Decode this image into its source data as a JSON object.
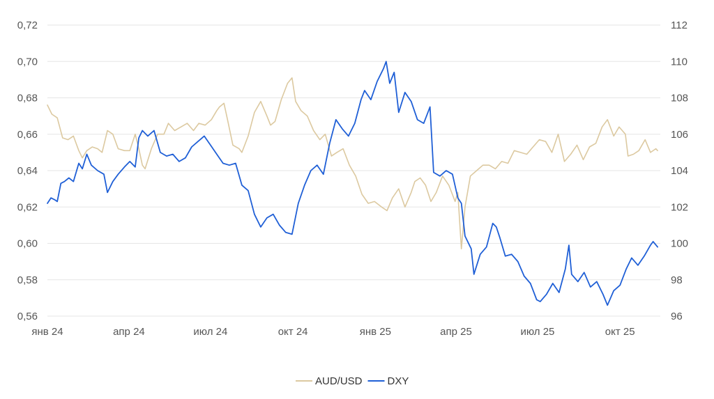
{
  "chart_data": {
    "type": "line",
    "title": "",
    "xlabel": "",
    "ylabel_left": "",
    "ylabel_right": "",
    "grid": "horizontal",
    "legend_position": "bottom-center",
    "x_range": [
      "2024-01-01",
      "2025-11-15"
    ],
    "y_left": {
      "range": [
        0.56,
        0.72
      ],
      "ticks": [
        "0,56",
        "0,58",
        "0,60",
        "0,62",
        "0,64",
        "0,66",
        "0,68",
        "0,70",
        "0,72"
      ]
    },
    "y_right": {
      "range": [
        96,
        112
      ],
      "ticks": [
        "96",
        "98",
        "100",
        "102",
        "104",
        "106",
        "108",
        "110",
        "112"
      ]
    },
    "x_ticks": [
      {
        "date": "2024-01-01",
        "label": "янв 24"
      },
      {
        "date": "2024-04-01",
        "label": "апр 24"
      },
      {
        "date": "2024-07-01",
        "label": "июл 24"
      },
      {
        "date": "2024-10-01",
        "label": "окт 24"
      },
      {
        "date": "2025-01-01",
        "label": "янв 25"
      },
      {
        "date": "2025-04-01",
        "label": "апр 25"
      },
      {
        "date": "2025-07-01",
        "label": "июл 25"
      },
      {
        "date": "2025-10-01",
        "label": "окт 25"
      }
    ],
    "series": [
      {
        "name": "AUD/USD",
        "axis": "left",
        "color": "#dcc9a0",
        "points": [
          [
            "2024-01-01",
            0.676
          ],
          [
            "2024-01-06",
            0.671
          ],
          [
            "2024-01-12",
            0.669
          ],
          [
            "2024-01-18",
            0.658
          ],
          [
            "2024-01-24",
            0.657
          ],
          [
            "2024-01-30",
            0.659
          ],
          [
            "2024-02-05",
            0.651
          ],
          [
            "2024-02-09",
            0.647
          ],
          [
            "2024-02-14",
            0.651
          ],
          [
            "2024-02-20",
            0.653
          ],
          [
            "2024-02-26",
            0.652
          ],
          [
            "2024-03-02",
            0.65
          ],
          [
            "2024-03-08",
            0.662
          ],
          [
            "2024-03-14",
            0.66
          ],
          [
            "2024-03-20",
            0.652
          ],
          [
            "2024-03-27",
            0.651
          ],
          [
            "2024-04-02",
            0.651
          ],
          [
            "2024-04-08",
            0.66
          ],
          [
            "2024-04-12",
            0.652
          ],
          [
            "2024-04-16",
            0.643
          ],
          [
            "2024-04-19",
            0.641
          ],
          [
            "2024-04-26",
            0.652
          ],
          [
            "2024-05-03",
            0.66
          ],
          [
            "2024-05-10",
            0.66
          ],
          [
            "2024-05-15",
            0.666
          ],
          [
            "2024-05-22",
            0.662
          ],
          [
            "2024-05-29",
            0.664
          ],
          [
            "2024-06-05",
            0.666
          ],
          [
            "2024-06-12",
            0.662
          ],
          [
            "2024-06-18",
            0.666
          ],
          [
            "2024-06-25",
            0.665
          ],
          [
            "2024-07-02",
            0.668
          ],
          [
            "2024-07-08",
            0.673
          ],
          [
            "2024-07-11",
            0.675
          ],
          [
            "2024-07-16",
            0.677
          ],
          [
            "2024-07-20",
            0.668
          ],
          [
            "2024-07-26",
            0.654
          ],
          [
            "2024-08-02",
            0.652
          ],
          [
            "2024-08-05",
            0.65
          ],
          [
            "2024-08-12",
            0.659
          ],
          [
            "2024-08-19",
            0.672
          ],
          [
            "2024-08-26",
            0.678
          ],
          [
            "2024-09-02",
            0.67
          ],
          [
            "2024-09-06",
            0.665
          ],
          [
            "2024-09-11",
            0.667
          ],
          [
            "2024-09-18",
            0.679
          ],
          [
            "2024-09-25",
            0.688
          ],
          [
            "2024-09-30",
            0.691
          ],
          [
            "2024-10-04",
            0.678
          ],
          [
            "2024-10-10",
            0.673
          ],
          [
            "2024-10-17",
            0.67
          ],
          [
            "2024-10-24",
            0.662
          ],
          [
            "2024-10-31",
            0.657
          ],
          [
            "2024-11-06",
            0.66
          ],
          [
            "2024-11-13",
            0.648
          ],
          [
            "2024-11-19",
            0.65
          ],
          [
            "2024-11-26",
            0.652
          ],
          [
            "2024-12-03",
            0.643
          ],
          [
            "2024-12-10",
            0.637
          ],
          [
            "2024-12-17",
            0.627
          ],
          [
            "2024-12-24",
            0.622
          ],
          [
            "2024-12-31",
            0.623
          ],
          [
            "2025-01-08",
            0.62
          ],
          [
            "2025-01-14",
            0.618
          ],
          [
            "2025-01-20",
            0.625
          ],
          [
            "2025-01-27",
            0.63
          ],
          [
            "2025-02-03",
            0.62
          ],
          [
            "2025-02-10",
            0.628
          ],
          [
            "2025-02-14",
            0.634
          ],
          [
            "2025-02-20",
            0.636
          ],
          [
            "2025-02-26",
            0.632
          ],
          [
            "2025-03-04",
            0.623
          ],
          [
            "2025-03-10",
            0.628
          ],
          [
            "2025-03-17",
            0.637
          ],
          [
            "2025-03-24",
            0.632
          ],
          [
            "2025-03-31",
            0.623
          ],
          [
            "2025-04-03",
            0.628
          ],
          [
            "2025-04-07",
            0.597
          ],
          [
            "2025-04-11",
            0.62
          ],
          [
            "2025-04-17",
            0.637
          ],
          [
            "2025-04-24",
            0.64
          ],
          [
            "2025-05-01",
            0.643
          ],
          [
            "2025-05-08",
            0.643
          ],
          [
            "2025-05-15",
            0.641
          ],
          [
            "2025-05-22",
            0.645
          ],
          [
            "2025-05-29",
            0.644
          ],
          [
            "2025-06-05",
            0.651
          ],
          [
            "2025-06-12",
            0.65
          ],
          [
            "2025-06-19",
            0.649
          ],
          [
            "2025-06-26",
            0.653
          ],
          [
            "2025-07-03",
            0.657
          ],
          [
            "2025-07-10",
            0.656
          ],
          [
            "2025-07-17",
            0.65
          ],
          [
            "2025-07-24",
            0.66
          ],
          [
            "2025-07-31",
            0.645
          ],
          [
            "2025-08-07",
            0.649
          ],
          [
            "2025-08-14",
            0.654
          ],
          [
            "2025-08-21",
            0.646
          ],
          [
            "2025-08-28",
            0.653
          ],
          [
            "2025-09-04",
            0.655
          ],
          [
            "2025-09-11",
            0.664
          ],
          [
            "2025-09-17",
            0.668
          ],
          [
            "2025-09-24",
            0.659
          ],
          [
            "2025-09-30",
            0.664
          ],
          [
            "2025-10-07",
            0.66
          ],
          [
            "2025-10-10",
            0.648
          ],
          [
            "2025-10-16",
            0.649
          ],
          [
            "2025-10-22",
            0.651
          ],
          [
            "2025-10-29",
            0.657
          ],
          [
            "2025-11-04",
            0.65
          ],
          [
            "2025-11-10",
            0.652
          ],
          [
            "2025-11-12",
            0.651
          ]
        ]
      },
      {
        "name": "DXY",
        "axis": "right",
        "color": "#1f5fd6",
        "points": [
          [
            "2024-01-01",
            102.2
          ],
          [
            "2024-01-05",
            102.5
          ],
          [
            "2024-01-09",
            102.4
          ],
          [
            "2024-01-12",
            102.3
          ],
          [
            "2024-01-16",
            103.3
          ],
          [
            "2024-01-20",
            103.4
          ],
          [
            "2024-01-25",
            103.6
          ],
          [
            "2024-01-30",
            103.4
          ],
          [
            "2024-02-05",
            104.4
          ],
          [
            "2024-02-09",
            104.1
          ],
          [
            "2024-02-14",
            104.9
          ],
          [
            "2024-02-19",
            104.3
          ],
          [
            "2024-02-26",
            104.0
          ],
          [
            "2024-03-04",
            103.8
          ],
          [
            "2024-03-08",
            102.8
          ],
          [
            "2024-03-14",
            103.4
          ],
          [
            "2024-03-20",
            103.8
          ],
          [
            "2024-03-27",
            104.2
          ],
          [
            "2024-04-02",
            104.5
          ],
          [
            "2024-04-08",
            104.2
          ],
          [
            "2024-04-12",
            105.8
          ],
          [
            "2024-04-16",
            106.2
          ],
          [
            "2024-04-22",
            105.9
          ],
          [
            "2024-04-29",
            106.2
          ],
          [
            "2024-05-06",
            105.0
          ],
          [
            "2024-05-13",
            104.8
          ],
          [
            "2024-05-20",
            104.9
          ],
          [
            "2024-05-27",
            104.5
          ],
          [
            "2024-06-03",
            104.7
          ],
          [
            "2024-06-10",
            105.3
          ],
          [
            "2024-06-17",
            105.6
          ],
          [
            "2024-06-24",
            105.9
          ],
          [
            "2024-07-01",
            105.4
          ],
          [
            "2024-07-08",
            104.9
          ],
          [
            "2024-07-15",
            104.4
          ],
          [
            "2024-07-22",
            104.3
          ],
          [
            "2024-07-29",
            104.4
          ],
          [
            "2024-08-05",
            103.2
          ],
          [
            "2024-08-12",
            102.9
          ],
          [
            "2024-08-19",
            101.6
          ],
          [
            "2024-08-26",
            100.9
          ],
          [
            "2024-09-02",
            101.4
          ],
          [
            "2024-09-09",
            101.6
          ],
          [
            "2024-09-16",
            101.0
          ],
          [
            "2024-09-23",
            100.6
          ],
          [
            "2024-09-30",
            100.5
          ],
          [
            "2024-10-07",
            102.2
          ],
          [
            "2024-10-14",
            103.2
          ],
          [
            "2024-10-21",
            104.0
          ],
          [
            "2024-10-28",
            104.3
          ],
          [
            "2024-11-04",
            103.8
          ],
          [
            "2024-11-11",
            105.5
          ],
          [
            "2024-11-18",
            106.8
          ],
          [
            "2024-11-25",
            106.3
          ],
          [
            "2024-12-02",
            105.9
          ],
          [
            "2024-12-09",
            106.6
          ],
          [
            "2024-12-16",
            107.9
          ],
          [
            "2024-12-20",
            108.4
          ],
          [
            "2024-12-27",
            107.9
          ],
          [
            "2025-01-03",
            108.9
          ],
          [
            "2025-01-10",
            109.6
          ],
          [
            "2025-01-13",
            110.0
          ],
          [
            "2025-01-17",
            108.8
          ],
          [
            "2025-01-22",
            109.4
          ],
          [
            "2025-01-27",
            107.2
          ],
          [
            "2025-02-03",
            108.3
          ],
          [
            "2025-02-10",
            107.8
          ],
          [
            "2025-02-17",
            106.8
          ],
          [
            "2025-02-24",
            106.6
          ],
          [
            "2025-03-03",
            107.5
          ],
          [
            "2025-03-07",
            103.9
          ],
          [
            "2025-03-14",
            103.7
          ],
          [
            "2025-03-21",
            104.0
          ],
          [
            "2025-03-28",
            103.8
          ],
          [
            "2025-04-03",
            102.5
          ],
          [
            "2025-04-07",
            102.2
          ],
          [
            "2025-04-11",
            100.4
          ],
          [
            "2025-04-18",
            99.7
          ],
          [
            "2025-04-21",
            98.3
          ],
          [
            "2025-04-28",
            99.4
          ],
          [
            "2025-05-05",
            99.8
          ],
          [
            "2025-05-12",
            101.1
          ],
          [
            "2025-05-16",
            100.9
          ],
          [
            "2025-05-20",
            100.3
          ],
          [
            "2025-05-26",
            99.3
          ],
          [
            "2025-06-02",
            99.4
          ],
          [
            "2025-06-09",
            99.0
          ],
          [
            "2025-06-16",
            98.2
          ],
          [
            "2025-06-23",
            97.8
          ],
          [
            "2025-06-30",
            96.9
          ],
          [
            "2025-07-04",
            96.8
          ],
          [
            "2025-07-11",
            97.2
          ],
          [
            "2025-07-18",
            97.8
          ],
          [
            "2025-07-25",
            97.3
          ],
          [
            "2025-08-01",
            98.6
          ],
          [
            "2025-08-05",
            99.9
          ],
          [
            "2025-08-08",
            98.3
          ],
          [
            "2025-08-15",
            97.9
          ],
          [
            "2025-08-22",
            98.4
          ],
          [
            "2025-08-29",
            97.6
          ],
          [
            "2025-09-05",
            97.9
          ],
          [
            "2025-09-12",
            97.2
          ],
          [
            "2025-09-17",
            96.6
          ],
          [
            "2025-09-24",
            97.4
          ],
          [
            "2025-10-01",
            97.7
          ],
          [
            "2025-10-08",
            98.6
          ],
          [
            "2025-10-14",
            99.2
          ],
          [
            "2025-10-21",
            98.8
          ],
          [
            "2025-10-28",
            99.3
          ],
          [
            "2025-11-04",
            99.9
          ],
          [
            "2025-11-07",
            100.1
          ],
          [
            "2025-11-12",
            99.8
          ]
        ]
      }
    ]
  }
}
